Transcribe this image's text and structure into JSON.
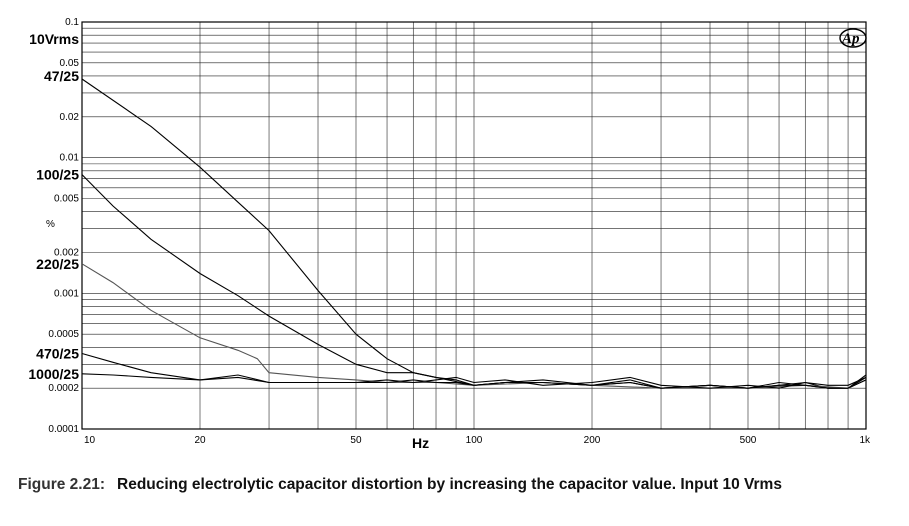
{
  "chart_data": {
    "type": "line",
    "xlabel": "Hz",
    "ylabel": "%",
    "x_scale": "log",
    "y_scale": "log",
    "xlim": [
      10,
      1000
    ],
    "ylim": [
      0.0001,
      0.1
    ],
    "grid": true,
    "x_ticks": [
      {
        "value": 10,
        "label": "10"
      },
      {
        "value": 20,
        "label": "20"
      },
      {
        "value": 50,
        "label": "50"
      },
      {
        "value": 100,
        "label": "100"
      },
      {
        "value": 200,
        "label": "200"
      },
      {
        "value": 500,
        "label": "500"
      },
      {
        "value": 1000,
        "label": "1k"
      }
    ],
    "y_ticks": [
      {
        "value": 0.1,
        "label": "0.1"
      },
      {
        "value": 0.05,
        "label": "0.05"
      },
      {
        "value": 0.02,
        "label": "0.02"
      },
      {
        "value": 0.01,
        "label": "0.01"
      },
      {
        "value": 0.005,
        "label": "0.005"
      },
      {
        "value": 0.002,
        "label": "0.002"
      },
      {
        "value": 0.001,
        "label": "0.001"
      },
      {
        "value": 0.0005,
        "label": "0.0005"
      },
      {
        "value": 0.0002,
        "label": "0.0002"
      },
      {
        "value": 0.0001,
        "label": "0.0001"
      }
    ],
    "annotations": [
      {
        "text": "10Vrms",
        "y": 0.075
      },
      {
        "text": "47/25",
        "y": 0.04
      },
      {
        "text": "100/25",
        "y": 0.0075
      },
      {
        "text": "220/25",
        "y": 0.00165
      },
      {
        "text": "470/25",
        "y": 0.00036
      },
      {
        "text": "1000/25",
        "y": 0.000255
      }
    ],
    "series": [
      {
        "name": "47/25",
        "color": "#000000",
        "x": [
          10,
          15,
          20,
          25,
          30,
          40,
          50,
          60,
          70,
          80,
          90,
          100,
          120,
          150,
          200,
          250,
          300,
          400,
          500,
          600,
          700,
          800,
          900,
          1000
        ],
        "y": [
          0.038,
          0.017,
          0.0085,
          0.0047,
          0.0029,
          0.00105,
          0.0005,
          0.00033,
          0.00026,
          0.00024,
          0.00023,
          0.00021,
          0.00022,
          0.00023,
          0.00021,
          0.00022,
          0.0002,
          0.00021,
          0.0002,
          0.00022,
          0.00021,
          0.0002,
          0.0002,
          0.00025
        ]
      },
      {
        "name": "100/25",
        "color": "#000000",
        "x": [
          10,
          12,
          15,
          20,
          25,
          30,
          40,
          50,
          60,
          70,
          80,
          100,
          120,
          150,
          200,
          250,
          300,
          400,
          500,
          600,
          700,
          800,
          900,
          1000
        ],
        "y": [
          0.0075,
          0.0044,
          0.0025,
          0.0014,
          0.00096,
          0.00068,
          0.00042,
          0.0003,
          0.00026,
          0.00026,
          0.00024,
          0.00021,
          0.00022,
          0.00022,
          0.00021,
          0.00023,
          0.0002,
          0.00021,
          0.0002,
          0.00021,
          0.00022,
          0.0002,
          0.0002,
          0.00024
        ]
      },
      {
        "name": "220/25",
        "color": "#555555",
        "x": [
          10,
          12,
          15,
          20,
          25,
          28,
          30,
          40,
          50,
          60,
          80,
          100,
          150,
          200,
          300,
          400,
          500,
          700,
          900,
          1000
        ],
        "y": [
          0.00165,
          0.0012,
          0.00075,
          0.00047,
          0.00038,
          0.00033,
          0.00026,
          0.00024,
          0.00023,
          0.00022,
          0.00022,
          0.00021,
          0.00022,
          0.00021,
          0.0002,
          0.0002,
          0.0002,
          0.00021,
          0.0002,
          0.00023
        ]
      },
      {
        "name": "470/25",
        "color": "#000000",
        "x": [
          10,
          12,
          15,
          20,
          25,
          30,
          40,
          50,
          60,
          70,
          80,
          90,
          100,
          120,
          150,
          200,
          250,
          300,
          400,
          500,
          600,
          700,
          800,
          900,
          1000
        ],
        "y": [
          0.00036,
          0.00031,
          0.00026,
          0.00023,
          0.00025,
          0.00022,
          0.00022,
          0.00022,
          0.00023,
          0.00022,
          0.00023,
          0.00024,
          0.00022,
          0.00023,
          0.00021,
          0.00022,
          0.00024,
          0.00021,
          0.0002,
          0.00021,
          0.0002,
          0.00022,
          0.00021,
          0.00021,
          0.00024
        ]
      },
      {
        "name": "1000/25",
        "color": "#000000",
        "x": [
          10,
          12,
          15,
          20,
          25,
          30,
          40,
          50,
          60,
          70,
          80,
          90,
          100,
          120,
          150,
          200,
          250,
          300,
          400,
          500,
          600,
          700,
          800,
          900,
          1000
        ],
        "y": [
          0.000255,
          0.00025,
          0.00024,
          0.00023,
          0.00024,
          0.00022,
          0.00022,
          0.00022,
          0.00022,
          0.00023,
          0.00022,
          0.00022,
          0.00021,
          0.00022,
          0.00022,
          0.00021,
          0.00022,
          0.0002,
          0.00021,
          0.0002,
          0.00021,
          0.00021,
          0.0002,
          0.0002,
          0.00023
        ]
      }
    ]
  },
  "logo": {
    "text": "Ap"
  },
  "caption": {
    "figure": "Figure 2.21:",
    "text": "Reducing electrolytic capacitor distortion by increasing the capacitor value. Input 10 Vrms"
  }
}
